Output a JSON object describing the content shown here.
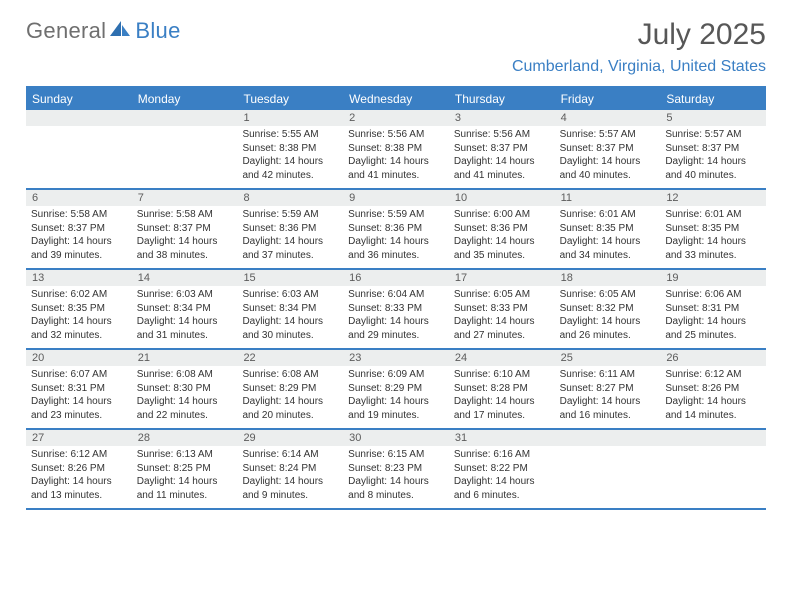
{
  "brand": {
    "part1": "General",
    "part2": "Blue"
  },
  "title": "July 2025",
  "location": "Cumberland, Virginia, United States",
  "colors": {
    "accent": "#3a7fc4",
    "header_gray": "#eceeee",
    "text_gray": "#575757",
    "logo_gray": "#6f6f6f"
  },
  "weekdays": [
    "Sunday",
    "Monday",
    "Tuesday",
    "Wednesday",
    "Thursday",
    "Friday",
    "Saturday"
  ],
  "weeks": [
    [
      {
        "n": "",
        "sr": "",
        "ss": "",
        "dl": ""
      },
      {
        "n": "",
        "sr": "",
        "ss": "",
        "dl": ""
      },
      {
        "n": "1",
        "sr": "5:55 AM",
        "ss": "8:38 PM",
        "dl": "14 hours and 42 minutes."
      },
      {
        "n": "2",
        "sr": "5:56 AM",
        "ss": "8:38 PM",
        "dl": "14 hours and 41 minutes."
      },
      {
        "n": "3",
        "sr": "5:56 AM",
        "ss": "8:37 PM",
        "dl": "14 hours and 41 minutes."
      },
      {
        "n": "4",
        "sr": "5:57 AM",
        "ss": "8:37 PM",
        "dl": "14 hours and 40 minutes."
      },
      {
        "n": "5",
        "sr": "5:57 AM",
        "ss": "8:37 PM",
        "dl": "14 hours and 40 minutes."
      }
    ],
    [
      {
        "n": "6",
        "sr": "5:58 AM",
        "ss": "8:37 PM",
        "dl": "14 hours and 39 minutes."
      },
      {
        "n": "7",
        "sr": "5:58 AM",
        "ss": "8:37 PM",
        "dl": "14 hours and 38 minutes."
      },
      {
        "n": "8",
        "sr": "5:59 AM",
        "ss": "8:36 PM",
        "dl": "14 hours and 37 minutes."
      },
      {
        "n": "9",
        "sr": "5:59 AM",
        "ss": "8:36 PM",
        "dl": "14 hours and 36 minutes."
      },
      {
        "n": "10",
        "sr": "6:00 AM",
        "ss": "8:36 PM",
        "dl": "14 hours and 35 minutes."
      },
      {
        "n": "11",
        "sr": "6:01 AM",
        "ss": "8:35 PM",
        "dl": "14 hours and 34 minutes."
      },
      {
        "n": "12",
        "sr": "6:01 AM",
        "ss": "8:35 PM",
        "dl": "14 hours and 33 minutes."
      }
    ],
    [
      {
        "n": "13",
        "sr": "6:02 AM",
        "ss": "8:35 PM",
        "dl": "14 hours and 32 minutes."
      },
      {
        "n": "14",
        "sr": "6:03 AM",
        "ss": "8:34 PM",
        "dl": "14 hours and 31 minutes."
      },
      {
        "n": "15",
        "sr": "6:03 AM",
        "ss": "8:34 PM",
        "dl": "14 hours and 30 minutes."
      },
      {
        "n": "16",
        "sr": "6:04 AM",
        "ss": "8:33 PM",
        "dl": "14 hours and 29 minutes."
      },
      {
        "n": "17",
        "sr": "6:05 AM",
        "ss": "8:33 PM",
        "dl": "14 hours and 27 minutes."
      },
      {
        "n": "18",
        "sr": "6:05 AM",
        "ss": "8:32 PM",
        "dl": "14 hours and 26 minutes."
      },
      {
        "n": "19",
        "sr": "6:06 AM",
        "ss": "8:31 PM",
        "dl": "14 hours and 25 minutes."
      }
    ],
    [
      {
        "n": "20",
        "sr": "6:07 AM",
        "ss": "8:31 PM",
        "dl": "14 hours and 23 minutes."
      },
      {
        "n": "21",
        "sr": "6:08 AM",
        "ss": "8:30 PM",
        "dl": "14 hours and 22 minutes."
      },
      {
        "n": "22",
        "sr": "6:08 AM",
        "ss": "8:29 PM",
        "dl": "14 hours and 20 minutes."
      },
      {
        "n": "23",
        "sr": "6:09 AM",
        "ss": "8:29 PM",
        "dl": "14 hours and 19 minutes."
      },
      {
        "n": "24",
        "sr": "6:10 AM",
        "ss": "8:28 PM",
        "dl": "14 hours and 17 minutes."
      },
      {
        "n": "25",
        "sr": "6:11 AM",
        "ss": "8:27 PM",
        "dl": "14 hours and 16 minutes."
      },
      {
        "n": "26",
        "sr": "6:12 AM",
        "ss": "8:26 PM",
        "dl": "14 hours and 14 minutes."
      }
    ],
    [
      {
        "n": "27",
        "sr": "6:12 AM",
        "ss": "8:26 PM",
        "dl": "14 hours and 13 minutes."
      },
      {
        "n": "28",
        "sr": "6:13 AM",
        "ss": "8:25 PM",
        "dl": "14 hours and 11 minutes."
      },
      {
        "n": "29",
        "sr": "6:14 AM",
        "ss": "8:24 PM",
        "dl": "14 hours and 9 minutes."
      },
      {
        "n": "30",
        "sr": "6:15 AM",
        "ss": "8:23 PM",
        "dl": "14 hours and 8 minutes."
      },
      {
        "n": "31",
        "sr": "6:16 AM",
        "ss": "8:22 PM",
        "dl": "14 hours and 6 minutes."
      },
      {
        "n": "",
        "sr": "",
        "ss": "",
        "dl": ""
      },
      {
        "n": "",
        "sr": "",
        "ss": "",
        "dl": ""
      }
    ]
  ],
  "labels": {
    "sunrise": "Sunrise:",
    "sunset": "Sunset:",
    "daylight": "Daylight:"
  }
}
